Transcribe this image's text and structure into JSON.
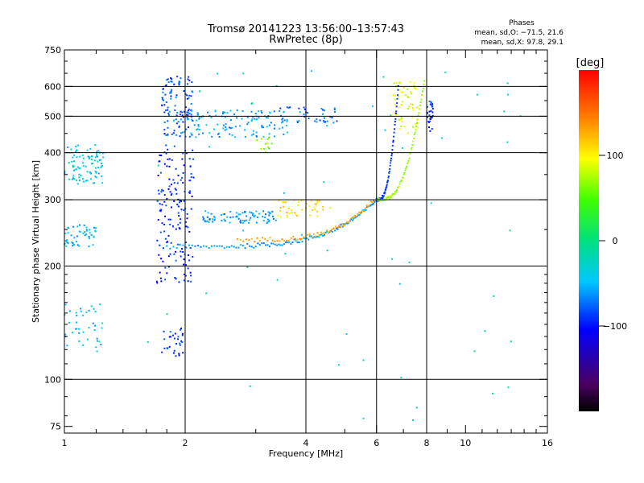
{
  "chart_data": {
    "type": "scatter",
    "title": "Tromsø 20141223 13:56:00–13:57:43",
    "subtitle": "RwPretec (8p)",
    "xlabel": "Frequency [MHz]",
    "ylabel": "Stationary phase Virtual Height [km]",
    "x_scale": "log",
    "y_scale": "log",
    "xlim": [
      1,
      16
    ],
    "ylim": [
      72,
      750
    ],
    "x_ticks": [
      {
        "value": 1,
        "label": "1"
      },
      {
        "value": 2,
        "label": "2"
      },
      {
        "value": 4,
        "label": "4"
      },
      {
        "value": 6,
        "label": "6"
      },
      {
        "value": 8,
        "label": "8"
      },
      {
        "value": 10,
        "label": "10"
      },
      {
        "value": 16,
        "label": "16"
      }
    ],
    "x_minor_ticks": [
      3,
      5,
      7,
      9,
      11,
      12,
      13,
      14,
      15
    ],
    "x_gridlines": [
      2,
      4,
      6,
      8
    ],
    "y_ticks": [
      {
        "value": 75,
        "label": "75"
      },
      {
        "value": 100,
        "label": "100"
      },
      {
        "value": 200,
        "label": "200"
      },
      {
        "value": 300,
        "label": "300"
      },
      {
        "value": 400,
        "label": "400"
      },
      {
        "value": 500,
        "label": "500"
      },
      {
        "value": 600,
        "label": "600"
      },
      {
        "value": 750,
        "label": "750"
      }
    ],
    "y_gridlines": [
      100,
      200,
      300,
      400,
      500,
      600
    ],
    "grid": true,
    "phase_info": {
      "heading": "Phases",
      "line_o": "mean, sd,O: −71.5, 21.6",
      "line_x": "mean, sd,X:  97.8, 29.1"
    },
    "colorbar": {
      "label": "[deg]",
      "range": [
        -200,
        200
      ],
      "ticks": [
        {
          "value": 100,
          "label": "100"
        },
        {
          "value": 0,
          "label": "0"
        },
        {
          "value": -100,
          "label": "−100"
        }
      ]
    },
    "traces": [
      {
        "name": "O-trace",
        "x_range": [
          1.8,
          6.0
        ],
        "h_start": 225,
        "h_end": 300,
        "phase": -60,
        "points": 120
      },
      {
        "name": "X-trace lower",
        "x_range": [
          2.7,
          5.9
        ],
        "h_start": 235,
        "h_end": 300,
        "phase": 130,
        "points": 70
      },
      {
        "name": "O-cusp",
        "x_range": [
          6.0,
          6.8
        ],
        "h_start": 300,
        "h_end": 600,
        "phase": -90,
        "points": 60
      },
      {
        "name": "X-cusp",
        "x_range": [
          6.0,
          7.9
        ],
        "h_start": 300,
        "h_end": 620,
        "phase": 70,
        "points": 70
      }
    ],
    "scatter_clusters": [
      {
        "x": [
          1.0,
          1.25
        ],
        "y": [
          330,
          420
        ],
        "phase": -40,
        "n": 90
      },
      {
        "x": [
          1.0,
          1.2
        ],
        "y": [
          225,
          260
        ],
        "phase": -50,
        "n": 50
      },
      {
        "x": [
          1.0,
          1.25
        ],
        "y": [
          118,
          160
        ],
        "phase": -45,
        "n": 40
      },
      {
        "x": [
          1.7,
          2.1
        ],
        "y": [
          180,
          420
        ],
        "phase": -95,
        "n": 160
      },
      {
        "x": [
          1.75,
          2.1
        ],
        "y": [
          440,
          640
        ],
        "phase": -80,
        "n": 110
      },
      {
        "x": [
          2.0,
          3.6
        ],
        "y": [
          440,
          520
        ],
        "phase": -55,
        "n": 120
      },
      {
        "x": [
          2.2,
          3.4
        ],
        "y": [
          260,
          280
        ],
        "phase": -60,
        "n": 80
      },
      {
        "x": [
          1.75,
          2.0
        ],
        "y": [
          115,
          140
        ],
        "phase": -90,
        "n": 30
      },
      {
        "x": [
          3.4,
          4.6
        ],
        "y": [
          270,
          300
        ],
        "phase": 105,
        "n": 45
      },
      {
        "x": [
          3.4,
          4.8
        ],
        "y": [
          480,
          530
        ],
        "phase": -75,
        "n": 40
      },
      {
        "x": [
          3.0,
          3.3
        ],
        "y": [
          400,
          440
        ],
        "phase": 60,
        "n": 12
      },
      {
        "x": [
          6.6,
          7.6
        ],
        "y": [
          450,
          620
        ],
        "phase": 90,
        "n": 60
      },
      {
        "x": [
          8.0,
          8.3
        ],
        "y": [
          450,
          550
        ],
        "phase": -90,
        "n": 30
      },
      {
        "x": [
          1.6,
          14.0
        ],
        "y": [
          75,
          700
        ],
        "phase": -20,
        "n": 55
      }
    ]
  }
}
